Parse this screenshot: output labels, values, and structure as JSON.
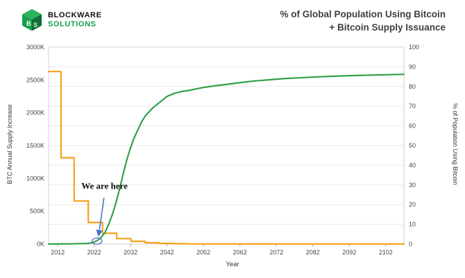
{
  "header": {
    "logo": {
      "line1": "BLOCKWARE",
      "line2": "SOLUTIONS",
      "accent_color": "#17a04a"
    },
    "title_line1": "% of Global Population Using Bitcoin",
    "title_line2": "+ Bitcoin Supply Issuance"
  },
  "chart_data": {
    "type": "line",
    "title": "% of Global Population Using Bitcoin + Bitcoin Supply Issuance",
    "xlabel": "Year",
    "ylabel_left": "BTC Annual Supply Increase",
    "ylabel_right": "% of Population Using Bitcoin",
    "x_range": [
      2009.5,
      2107
    ],
    "y_left_range": [
      0,
      3000
    ],
    "y_right_range": [
      0,
      100
    ],
    "x_ticks": [
      2012,
      2022,
      2032,
      2042,
      2052,
      2062,
      2072,
      2082,
      2092,
      2102
    ],
    "y_left_ticks": [
      {
        "value": 0,
        "label": "0K"
      },
      {
        "value": 500,
        "label": "500K"
      },
      {
        "value": 1000,
        "label": "1000K"
      },
      {
        "value": 1500,
        "label": "1500K"
      },
      {
        "value": 2000,
        "label": "2000K"
      },
      {
        "value": 2500,
        "label": "2500K"
      },
      {
        "value": 3000,
        "label": "3000K"
      }
    ],
    "y_right_ticks": [
      0,
      10,
      20,
      30,
      40,
      50,
      60,
      70,
      80,
      90,
      100
    ],
    "grid": true,
    "legend": "none",
    "series": [
      {
        "name": "BTC Annual Supply Increase",
        "axis": "left",
        "color": "#F6A01B",
        "x": [
          2009.5,
          2012.9,
          2012.9,
          2016.5,
          2016.5,
          2020.4,
          2020.4,
          2024.3,
          2024.3,
          2028.2,
          2028.2,
          2032.1,
          2032.1,
          2036.0,
          2036.0,
          2039.9,
          2039.9,
          2043.8,
          2043.8,
          2047.7,
          2047.7,
          2107
        ],
        "y": [
          2628,
          2628,
          1314,
          1314,
          657,
          657,
          328,
          328,
          164,
          164,
          82,
          82,
          41,
          41,
          20,
          20,
          10,
          10,
          5,
          5,
          2,
          0
        ]
      },
      {
        "name": "% of Population Using Bitcoin",
        "axis": "right",
        "color": "#2FA148",
        "x": [
          2009.5,
          2016,
          2020,
          2021,
          2022,
          2023,
          2024,
          2025,
          2026,
          2027,
          2028,
          2029,
          2030,
          2031,
          2032,
          2033,
          2034,
          2035,
          2036,
          2037,
          2038,
          2039,
          2040,
          2041,
          2042,
          2044,
          2046,
          2048,
          2050,
          2052,
          2055,
          2058,
          2062,
          2066,
          2070,
          2074,
          2078,
          2082,
          2086,
          2090,
          2094,
          2098,
          2102,
          2107
        ],
        "y": [
          0,
          0.1,
          0.3,
          0.5,
          1,
          2,
          3.5,
          6,
          10,
          15,
          21,
          28,
          36,
          43,
          49,
          54,
          58,
          62,
          65,
          67,
          69,
          70.5,
          72,
          73.5,
          75,
          76.5,
          77.5,
          78,
          78.8,
          79.5,
          80.3,
          81,
          82,
          82.8,
          83.4,
          84,
          84.4,
          84.8,
          85.1,
          85.4,
          85.6,
          85.8,
          86,
          86.2
        ]
      }
    ],
    "annotation": {
      "text": "We are here",
      "text_x": 2018.5,
      "text_y": 28,
      "arrow_from_x": 2024.7,
      "arrow_from_y": 23.5,
      "arrow_to_x": 2023.2,
      "arrow_to_y": 4,
      "circle_x": 2022.8,
      "circle_y": 1.5,
      "color": "#4472C4"
    }
  }
}
